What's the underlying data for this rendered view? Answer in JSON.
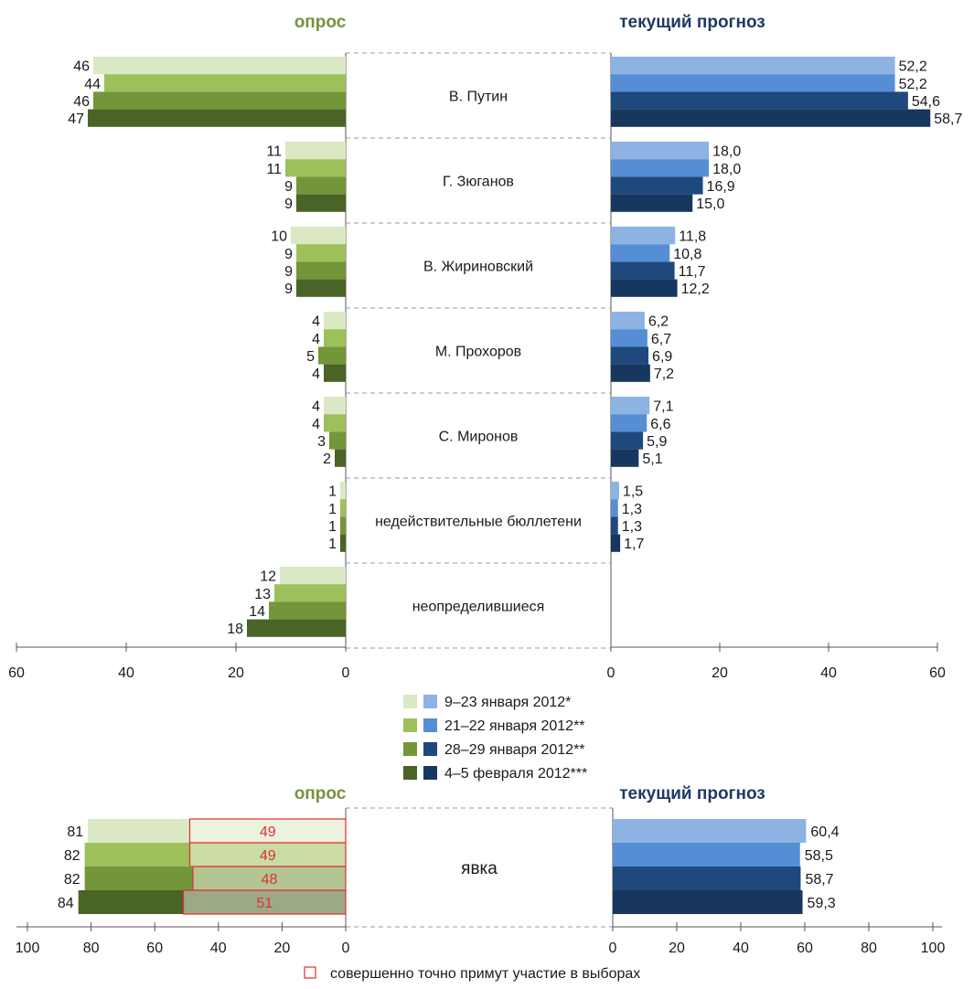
{
  "colors": {
    "survey": [
      "#dbe8c4",
      "#9dc05a",
      "#73963a",
      "#4a6326"
    ],
    "forecast": [
      "#8db3e2",
      "#558ed5",
      "#1f497d",
      "#17375e"
    ],
    "survey_header": "#76923c",
    "forecast_header": "#1f3864",
    "definitely_vote_border": "#e03030",
    "definitely_vote_text": "#e03030"
  },
  "chart_data": [
    {
      "type": "bar",
      "orientation": "horizontal",
      "title": "опрос",
      "categories": [
        "В. Путин",
        "Г. Зюганов",
        "В. Жириновский",
        "М. Прохоров",
        "С. Миронов",
        "недействительные бюллетени",
        "неопределившиеся"
      ],
      "series": [
        {
          "name": "9–23 января 2012*",
          "values": [
            46,
            11,
            10,
            4,
            4,
            1,
            12
          ]
        },
        {
          "name": "21–22 января 2012**",
          "values": [
            44,
            11,
            9,
            4,
            4,
            1,
            13
          ]
        },
        {
          "name": "28–29 января 2012**",
          "values": [
            46,
            9,
            9,
            5,
            3,
            1,
            14
          ]
        },
        {
          "name": "4–5 февраля 2012***",
          "values": [
            47,
            9,
            9,
            4,
            2,
            1,
            18
          ]
        }
      ],
      "xlim": [
        60,
        0
      ],
      "xticks": [
        "60",
        "40",
        "20",
        "0"
      ],
      "xlabel": "",
      "ylabel": ""
    },
    {
      "type": "bar",
      "orientation": "horizontal",
      "title": "текущий прогноз",
      "categories": [
        "В. Путин",
        "Г. Зюганов",
        "В. Жириновский",
        "М. Прохоров",
        "С. Миронов",
        "недействительные бюллетени",
        "неопределившиеся"
      ],
      "series": [
        {
          "name": "9–23 января 2012*",
          "values": [
            52.2,
            18.0,
            11.8,
            6.2,
            7.1,
            1.5,
            null
          ],
          "labels": [
            "52,2",
            "18,0",
            "11,8",
            "6,2",
            "7,1",
            "1,5",
            ""
          ]
        },
        {
          "name": "21–22 января 2012**",
          "values": [
            52.2,
            18.0,
            10.8,
            6.7,
            6.6,
            1.3,
            null
          ],
          "labels": [
            "52,2",
            "18,0",
            "10,8",
            "6,7",
            "6,6",
            "1,3",
            ""
          ]
        },
        {
          "name": "28–29 января 2012**",
          "values": [
            54.6,
            16.9,
            11.7,
            6.9,
            5.9,
            1.3,
            null
          ],
          "labels": [
            "54,6",
            "16,9",
            "11,7",
            "6,9",
            "5,9",
            "1,3",
            ""
          ]
        },
        {
          "name": "4–5 февраля 2012***",
          "values": [
            58.7,
            15.0,
            12.2,
            7.2,
            5.1,
            1.7,
            null
          ],
          "labels": [
            "58,7",
            "15,0",
            "12,2",
            "7,2",
            "5,1",
            "1,7",
            ""
          ]
        }
      ],
      "xlim": [
        0,
        60
      ],
      "xticks": [
        "0",
        "20",
        "40",
        "60"
      ],
      "xlabel": "",
      "ylabel": ""
    },
    {
      "type": "bar",
      "orientation": "horizontal",
      "title": "опрос",
      "categories": [
        "явка"
      ],
      "series": [
        {
          "name": "9–23 января 2012*",
          "values": [
            81
          ],
          "definitely": 49
        },
        {
          "name": "21–22 января 2012**",
          "values": [
            82
          ],
          "definitely": 49
        },
        {
          "name": "28–29 января 2012**",
          "values": [
            82
          ],
          "definitely": 48
        },
        {
          "name": "4–5 февраля 2012***",
          "values": [
            84
          ],
          "definitely": 51
        }
      ],
      "xlim": [
        100,
        0
      ],
      "xticks": [
        "100",
        "80",
        "60",
        "40",
        "20",
        "0"
      ],
      "xlabel": "",
      "ylabel": ""
    },
    {
      "type": "bar",
      "orientation": "horizontal",
      "title": "текущий прогноз",
      "categories": [
        "явка"
      ],
      "series": [
        {
          "name": "9–23 января 2012*",
          "values": [
            60.4
          ],
          "labels": [
            "60,4"
          ]
        },
        {
          "name": "21–22 января 2012**",
          "values": [
            58.5
          ],
          "labels": [
            "58,5"
          ]
        },
        {
          "name": "28–29 января 2012**",
          "values": [
            58.7
          ],
          "labels": [
            "58,7"
          ]
        },
        {
          "name": "4–5 февраля 2012***",
          "values": [
            59.3
          ],
          "labels": [
            "59,3"
          ]
        }
      ],
      "xlim": [
        0,
        100
      ],
      "xticks": [
        "0",
        "20",
        "40",
        "60",
        "80",
        "100"
      ],
      "xlabel": "",
      "ylabel": ""
    }
  ],
  "legend": {
    "placement": "center",
    "items": [
      "9–23 января 2012*",
      "21–22 января 2012**",
      "28–29 января 2012**",
      "4–5 февраля 2012***"
    ],
    "note": "совершенно точно примут участие в выборах"
  }
}
